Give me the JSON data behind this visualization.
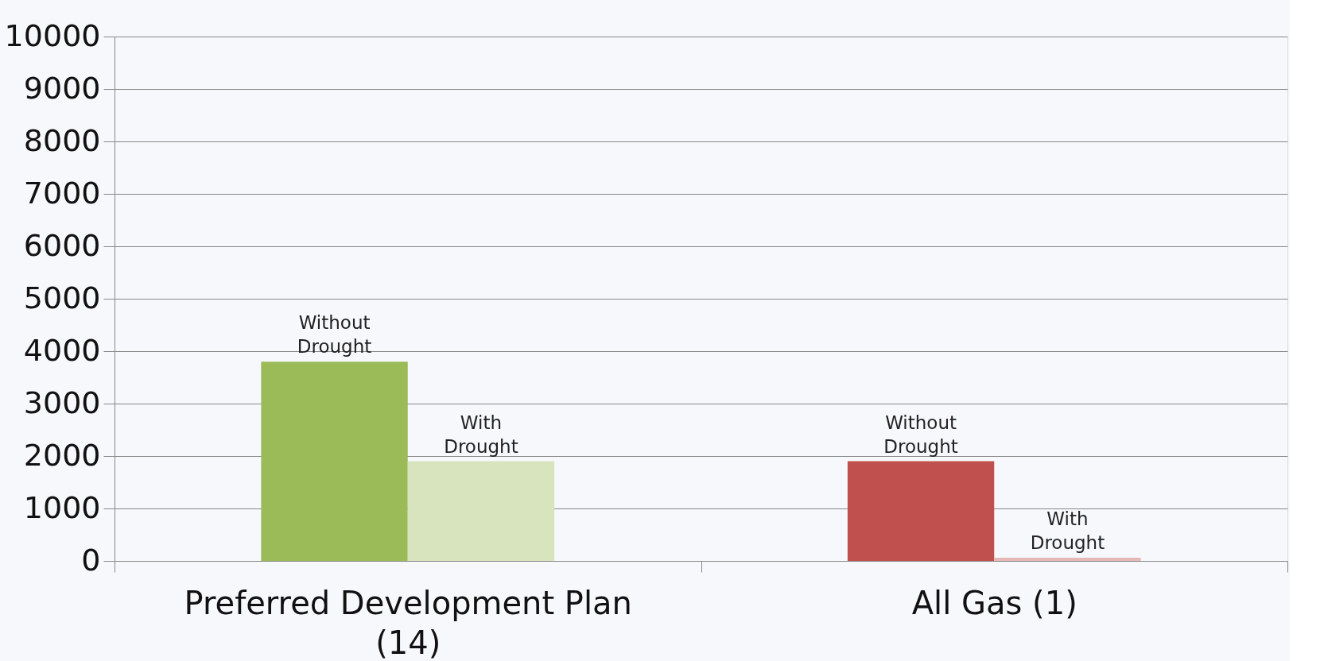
{
  "chart_data": {
    "type": "bar",
    "categories": [
      "Preferred Development Plan (14)",
      "All Gas (1)"
    ],
    "series": [
      {
        "name": "Without Drought",
        "colors": [
          "#9bbb59",
          "#c0504d"
        ],
        "values": [
          3800,
          1900
        ]
      },
      {
        "name": "With Drought",
        "colors": [
          "#d7e4bd",
          "#e6b9b8"
        ],
        "values": [
          1900,
          60
        ]
      }
    ],
    "ylim": [
      0,
      10000
    ],
    "yticks": [
      0,
      1000,
      2000,
      3000,
      4000,
      5000,
      6000,
      7000,
      8000,
      9000,
      10000
    ],
    "grid": "y"
  }
}
